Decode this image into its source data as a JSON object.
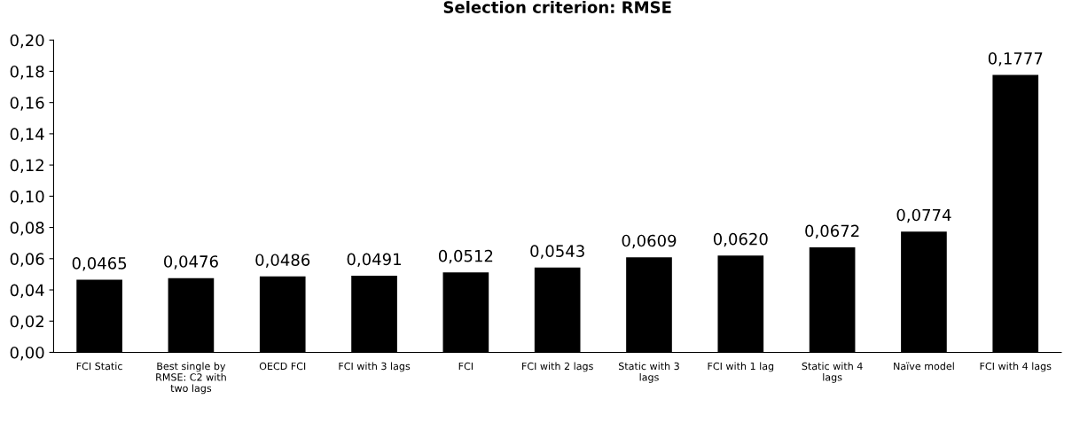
{
  "chart_data": {
    "type": "bar",
    "title": "Selection criterion: RMSE",
    "categories": [
      "FCI Static",
      "Best single by\nRMSE: C2 with\ntwo lags",
      "OECD FCI",
      "FCI with 3 lags",
      "FCI",
      "FCI with 2 lags",
      "Static with 3\nlags",
      "FCI with 1 lag",
      "Static with 4\nlags",
      "Naïve model",
      "FCI with 4 lags"
    ],
    "values": [
      0.0465,
      0.0476,
      0.0486,
      0.0491,
      0.0512,
      0.0543,
      0.0609,
      0.062,
      0.0672,
      0.0774,
      0.1777
    ],
    "value_labels": [
      "0,0465",
      "0,0476",
      "0,0486",
      "0,0491",
      "0,0512",
      "0,0543",
      "0,0609",
      "0,0620",
      "0,0672",
      "0,0774",
      "0,1777"
    ],
    "color": "#000000",
    "ylim": [
      0,
      0.2
    ],
    "yticks": [
      {
        "value": 0,
        "label": "0,00"
      },
      {
        "value": 0.02,
        "label": "0,02"
      },
      {
        "value": 0.04,
        "label": "0,04"
      },
      {
        "value": 0.06,
        "label": "0,06"
      },
      {
        "value": 0.08,
        "label": "0,08"
      },
      {
        "value": 0.1,
        "label": "0,10"
      },
      {
        "value": 0.12,
        "label": "0,12"
      },
      {
        "value": 0.14,
        "label": "0,14"
      },
      {
        "value": 0.16,
        "label": "0,16"
      },
      {
        "value": 0.18,
        "label": "0,18"
      },
      {
        "value": 0.2,
        "label": "0,20"
      }
    ],
    "grid": false,
    "legend": false
  }
}
